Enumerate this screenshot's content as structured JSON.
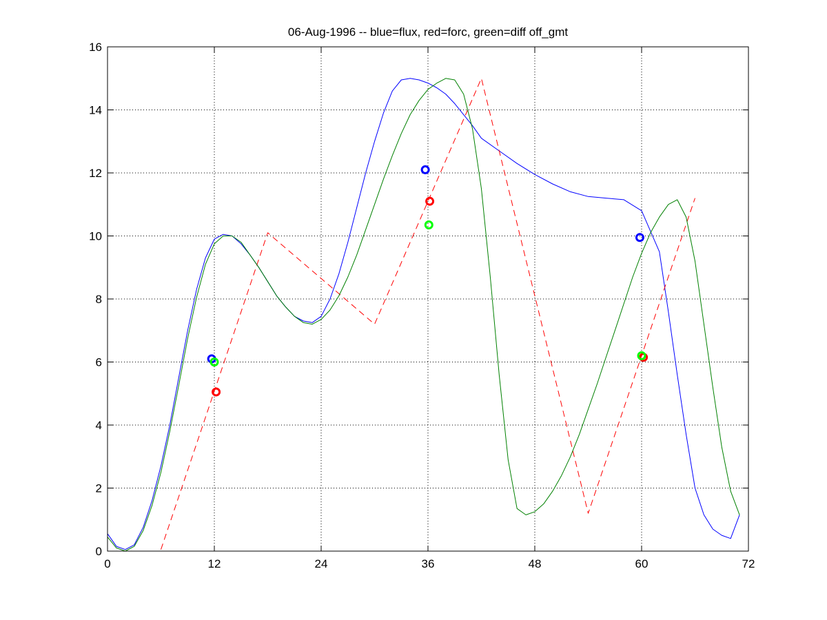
{
  "chart_data": {
    "type": "line",
    "title": "06-Aug-1996 -- blue=flux, red=forc, green=diff off_gmt",
    "xlabel": "",
    "ylabel": "",
    "xlim": [
      0,
      72
    ],
    "ylim": [
      0,
      16
    ],
    "xticks": [
      0,
      12,
      24,
      36,
      48,
      60,
      72
    ],
    "yticks": [
      0,
      2,
      4,
      6,
      8,
      10,
      12,
      14,
      16
    ],
    "grid": true,
    "legend": "none",
    "colors": {
      "flux": "#0000ff",
      "forc": "#ff0000",
      "diff_line": "#008000",
      "diff_marker": "#00ff00",
      "axes": "#000000",
      "grid": "#000000"
    },
    "series": [
      {
        "key": "flux",
        "style": "solid",
        "x": [
          0,
          1,
          2,
          3,
          4,
          5,
          6,
          7,
          8,
          9,
          10,
          11,
          12,
          13,
          14,
          15,
          16,
          17,
          18,
          19,
          20,
          21,
          22,
          23,
          24,
          25,
          26,
          27,
          28,
          29,
          30,
          31,
          32,
          33,
          34,
          35,
          36,
          37,
          38,
          39,
          40,
          41,
          42,
          44,
          46,
          48,
          50,
          52,
          54,
          56,
          58,
          60,
          62,
          63,
          64,
          65,
          66,
          67,
          68,
          69,
          70,
          71
        ],
        "y": [
          0.55,
          0.15,
          0.05,
          0.2,
          0.75,
          1.6,
          2.7,
          4.0,
          5.5,
          7.0,
          8.3,
          9.3,
          9.9,
          10.05,
          10.0,
          9.75,
          9.4,
          9.0,
          8.55,
          8.1,
          7.75,
          7.45,
          7.3,
          7.25,
          7.45,
          8.0,
          8.8,
          9.8,
          10.9,
          12.0,
          13.0,
          13.9,
          14.6,
          14.95,
          15.0,
          14.95,
          14.85,
          14.7,
          14.5,
          14.2,
          13.85,
          13.5,
          13.1,
          12.7,
          12.3,
          11.95,
          11.65,
          11.4,
          11.25,
          11.2,
          11.15,
          10.8,
          9.5,
          7.6,
          5.6,
          3.7,
          2.0,
          1.15,
          0.7,
          0.5,
          0.4,
          1.15
        ]
      },
      {
        "key": "forc",
        "style": "dashed",
        "x": [
          6,
          18,
          30,
          42,
          54,
          66
        ],
        "y": [
          0.05,
          10.1,
          7.2,
          15.0,
          1.2,
          11.2
        ]
      },
      {
        "key": "diff",
        "style": "solid",
        "x": [
          0,
          1,
          2,
          3,
          4,
          5,
          6,
          7,
          8,
          9,
          10,
          11,
          12,
          13,
          14,
          15,
          16,
          17,
          18,
          19,
          20,
          21,
          22,
          23,
          24,
          25,
          26,
          27,
          28,
          29,
          30,
          31,
          32,
          33,
          34,
          35,
          36,
          37,
          38,
          39,
          40,
          41,
          42,
          43,
          44,
          45,
          46,
          47,
          48,
          49,
          50,
          51,
          52,
          53,
          54,
          55,
          56,
          57,
          58,
          59,
          60,
          61,
          62,
          63,
          64,
          65,
          66,
          67,
          68,
          69,
          70,
          71
        ],
        "y": [
          0.45,
          0.1,
          0.0,
          0.15,
          0.65,
          1.45,
          2.5,
          3.8,
          5.25,
          6.75,
          8.05,
          9.1,
          9.75,
          10.0,
          10.0,
          9.8,
          9.4,
          9.0,
          8.55,
          8.1,
          7.75,
          7.45,
          7.25,
          7.2,
          7.35,
          7.65,
          8.1,
          8.7,
          9.4,
          10.2,
          11.0,
          11.8,
          12.55,
          13.25,
          13.85,
          14.3,
          14.65,
          14.85,
          15.0,
          14.95,
          14.5,
          13.4,
          11.5,
          8.7,
          5.6,
          2.9,
          1.35,
          1.15,
          1.25,
          1.5,
          1.9,
          2.4,
          3.0,
          3.7,
          4.5,
          5.3,
          6.15,
          7.0,
          7.85,
          8.7,
          9.45,
          10.1,
          10.6,
          11.0,
          11.15,
          10.6,
          9.2,
          7.2,
          5.2,
          3.3,
          1.9,
          1.15
        ]
      }
    ],
    "markers": [
      {
        "key": "flux",
        "color": "#0000ff",
        "x": [
          11.7,
          35.7,
          59.8
        ],
        "y": [
          6.1,
          12.1,
          9.95
        ]
      },
      {
        "key": "forc",
        "color": "#ff0000",
        "x": [
          12.2,
          36.2,
          60.2
        ],
        "y": [
          5.05,
          11.1,
          6.15
        ]
      },
      {
        "key": "diff",
        "color": "#00ff00",
        "x": [
          12.0,
          36.1,
          60.0
        ],
        "y": [
          6.0,
          10.35,
          6.2
        ]
      }
    ]
  }
}
